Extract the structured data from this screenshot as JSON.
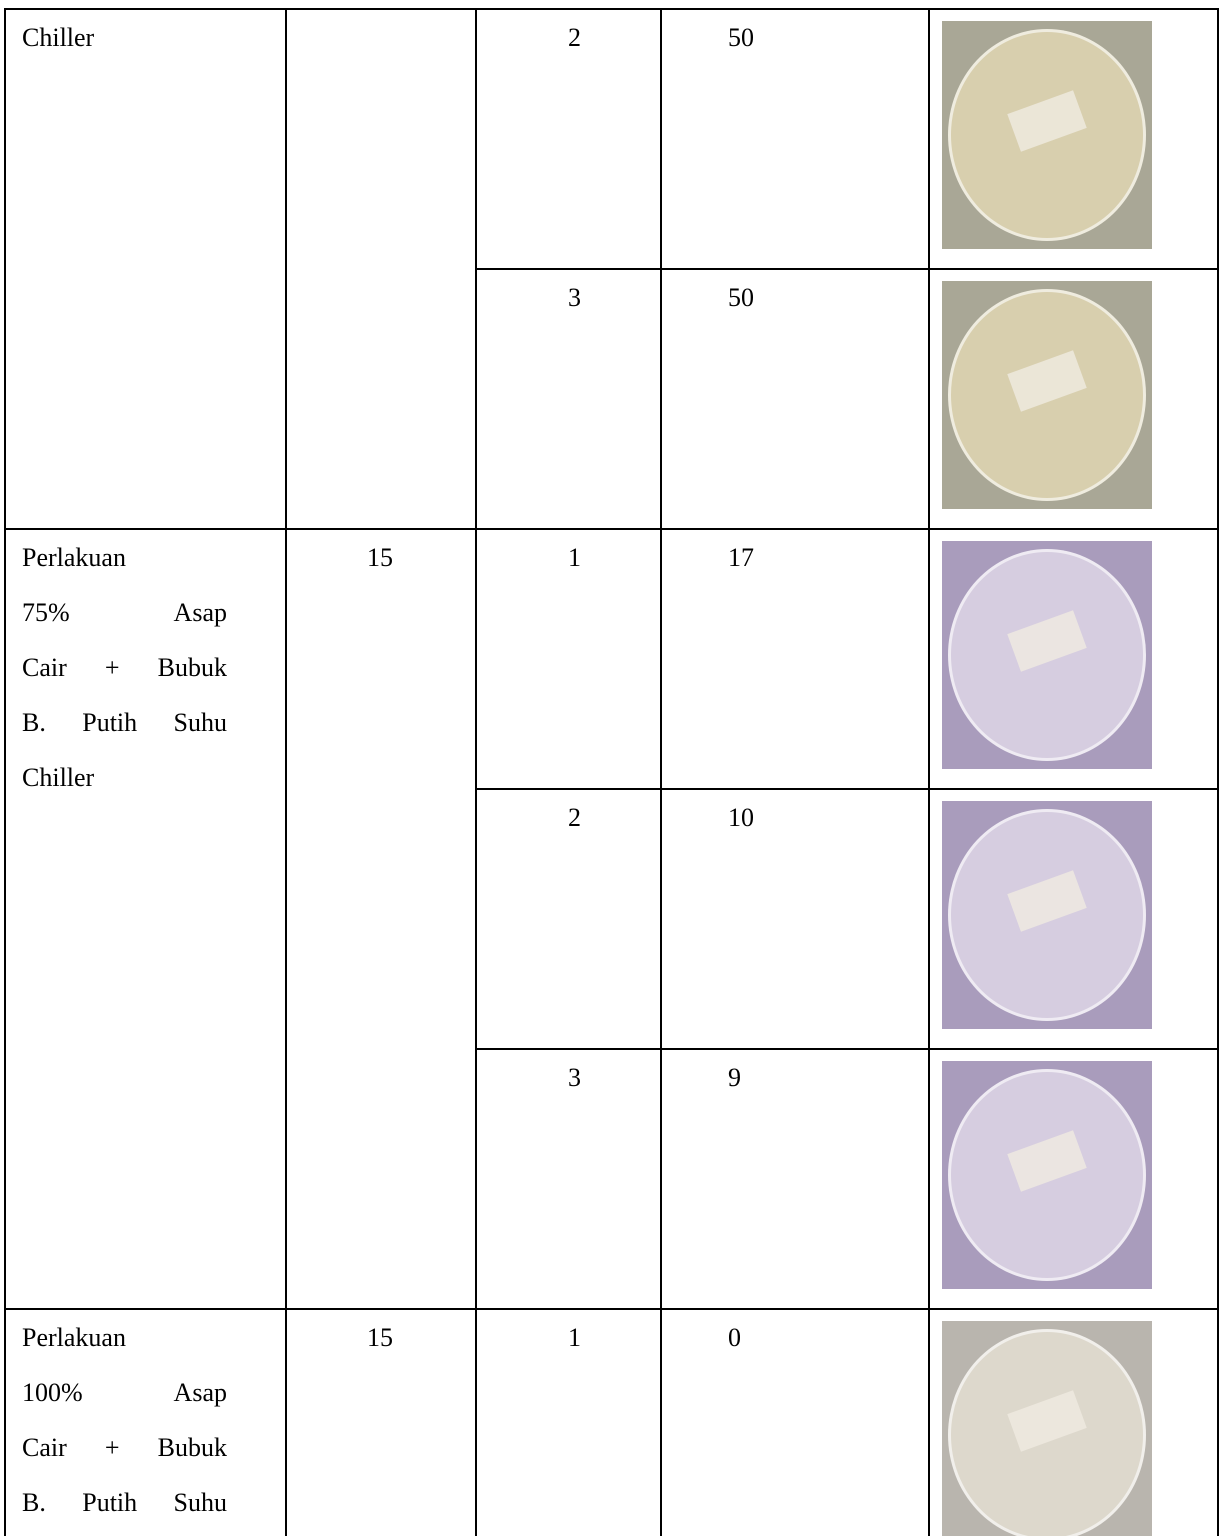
{
  "table": {
    "groups": [
      {
        "treatment": [
          "Chiller"
        ],
        "replicates": [
          {
            "rep": "2",
            "count": "50"
          },
          {
            "rep": "3",
            "count": "50"
          }
        ]
      },
      {
        "treatment": [
          "Perlakuan",
          "75% Asap",
          "Cair + Bubuk",
          "B. Putih Suhu",
          "Chiller"
        ],
        "time": "15",
        "replicates": [
          {
            "rep": "1",
            "count": "17"
          },
          {
            "rep": "2",
            "count": "10"
          },
          {
            "rep": "3",
            "count": "9"
          }
        ]
      },
      {
        "treatment": [
          "Perlakuan",
          "100% Asap",
          "Cair + Bubuk",
          "B. Putih Suhu"
        ],
        "time": "15",
        "replicates": [
          {
            "rep": "1",
            "count": "0"
          }
        ]
      }
    ]
  }
}
